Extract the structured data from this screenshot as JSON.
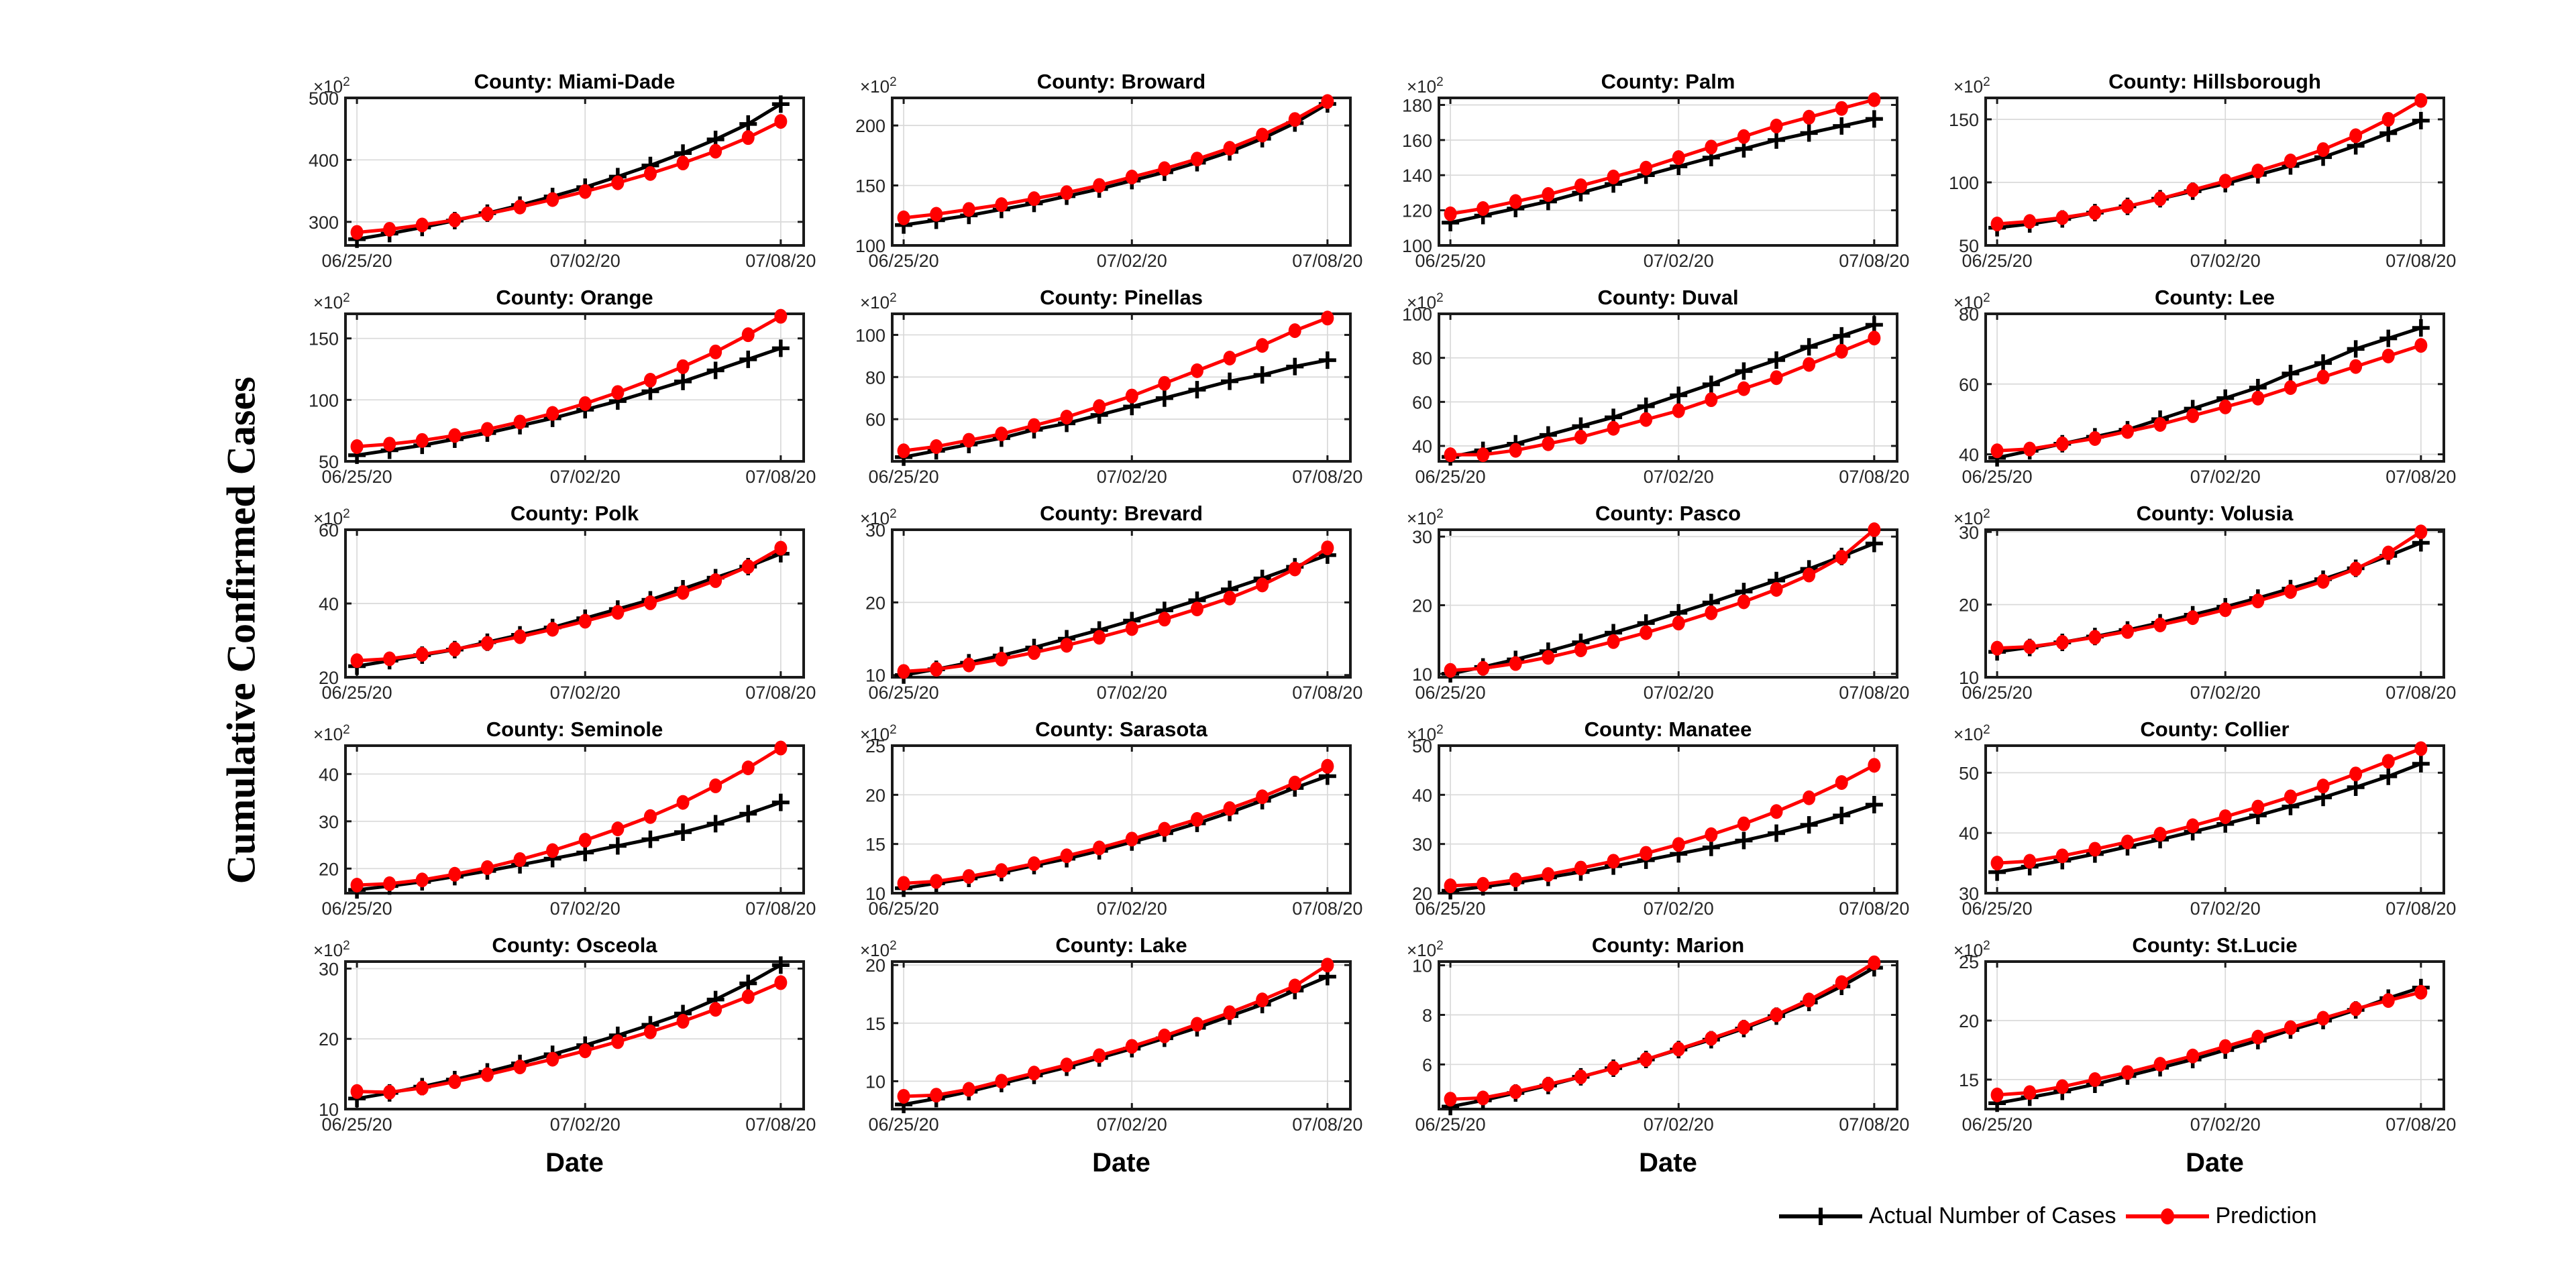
{
  "figure": {
    "ylabel": "Cumulative Confirmed Cases",
    "xlabel": "Date",
    "y_mult_base": "×10",
    "y_mult_exp": "2",
    "background": "#ffffff"
  },
  "legend": {
    "actual_label": "Actual Number of Cases",
    "prediction_label": "Prediction"
  },
  "colors": {
    "actual": "#000000",
    "prediction": "#ff0000",
    "grid_line": "#d9d9d9",
    "axis_box": "#1a1a1a",
    "tick_label": "#262626"
  },
  "x_axis": {
    "n_points": 14,
    "dates": [
      "06/25/20",
      "06/26/20",
      "06/27/20",
      "06/28/20",
      "06/29/20",
      "06/30/20",
      "07/01/20",
      "07/02/20",
      "07/03/20",
      "07/04/20",
      "07/05/20",
      "07/06/20",
      "07/07/20",
      "07/08/20"
    ],
    "tick_labels": [
      "06/25/20",
      "07/02/20",
      "07/08/20"
    ],
    "tick_positions": [
      0,
      7,
      13
    ]
  },
  "chart_data": [
    {
      "type": "line",
      "county": "Miami-Dade",
      "slug": "miami-dade",
      "title": "County: Miami-Dade",
      "unit": "x10^2",
      "ylim": [
        262,
        500
      ],
      "yticks": [
        300,
        400,
        500
      ],
      "series": [
        {
          "name": "Actual Number of Cases",
          "values": [
            272,
            281,
            291,
            302,
            314,
            327,
            341,
            356,
            373,
            391,
            411,
            433,
            458,
            490
          ]
        },
        {
          "name": "Prediction",
          "values": [
            283,
            288,
            295,
            303,
            313,
            324,
            336,
            349,
            363,
            378,
            395,
            414,
            436,
            462
          ]
        }
      ]
    },
    {
      "type": "line",
      "county": "Broward",
      "slug": "broward",
      "title": "County: Broward",
      "unit": "x10^2",
      "ylim": [
        100,
        223
      ],
      "yticks": [
        100,
        150,
        200
      ],
      "series": [
        {
          "name": "Actual Number of Cases",
          "values": [
            117,
            121,
            125,
            130,
            135,
            141,
            147,
            154,
            161,
            169,
            178,
            189,
            202,
            218
          ]
        },
        {
          "name": "Prediction",
          "values": [
            123,
            126,
            130,
            134,
            139,
            144,
            150,
            157,
            164,
            172,
            181,
            192,
            205,
            220
          ]
        }
      ]
    },
    {
      "type": "line",
      "county": "Palm",
      "slug": "palm",
      "title": "County: Palm",
      "unit": "x10^2",
      "ylim": [
        100,
        184
      ],
      "yticks": [
        100,
        120,
        140,
        160,
        180
      ],
      "series": [
        {
          "name": "Actual Number of Cases",
          "values": [
            113,
            117,
            121,
            125,
            130,
            135,
            140,
            145,
            150,
            155,
            160,
            164,
            168,
            172
          ]
        },
        {
          "name": "Prediction",
          "values": [
            118,
            121,
            125,
            129,
            134,
            139,
            144,
            150,
            156,
            162,
            168,
            173,
            178,
            183
          ]
        }
      ]
    },
    {
      "type": "line",
      "county": "Hillsborough",
      "slug": "hillsborough",
      "title": "County: Hillsborough",
      "unit": "x10^2",
      "ylim": [
        50,
        167
      ],
      "yticks": [
        50,
        100,
        150
      ],
      "series": [
        {
          "name": "Actual Number of Cases",
          "values": [
            64,
            67,
            71,
            76,
            81,
            87,
            93,
            99,
            106,
            113,
            120,
            129,
            139,
            149
          ]
        },
        {
          "name": "Prediction",
          "values": [
            67,
            69,
            72,
            76,
            81,
            87,
            94,
            101,
            109,
            117,
            126,
            137,
            150,
            165
          ]
        }
      ]
    },
    {
      "type": "line",
      "county": "Orange",
      "slug": "orange",
      "title": "County: Orange",
      "unit": "x10^2",
      "ylim": [
        50,
        170
      ],
      "yticks": [
        50,
        100,
        150
      ],
      "series": [
        {
          "name": "Actual Number of Cases",
          "values": [
            55,
            59,
            63,
            68,
            73,
            79,
            85,
            92,
            99,
            107,
            115,
            124,
            133,
            142
          ]
        },
        {
          "name": "Prediction",
          "values": [
            62,
            64,
            67,
            71,
            76,
            82,
            89,
            97,
            106,
            116,
            127,
            139,
            153,
            168
          ]
        }
      ]
    },
    {
      "type": "line",
      "county": "Pinellas",
      "slug": "pinellas",
      "title": "County: Pinellas",
      "unit": "x10^2",
      "ylim": [
        40,
        110
      ],
      "yticks": [
        60,
        80,
        100
      ],
      "series": [
        {
          "name": "Actual Number of Cases",
          "values": [
            42,
            45,
            48,
            51,
            55,
            58,
            62,
            66,
            70,
            74,
            78,
            81,
            85,
            88
          ]
        },
        {
          "name": "Prediction",
          "values": [
            45,
            47,
            50,
            53,
            57,
            61,
            66,
            71,
            77,
            83,
            89,
            95,
            102,
            108
          ]
        }
      ]
    },
    {
      "type": "line",
      "county": "Duval",
      "slug": "duval",
      "title": "County: Duval",
      "unit": "x10^2",
      "ylim": [
        33,
        100
      ],
      "yticks": [
        40,
        60,
        80,
        100
      ],
      "series": [
        {
          "name": "Actual Number of Cases",
          "values": [
            35,
            38,
            41,
            45,
            49,
            53,
            58,
            63,
            68,
            74,
            79,
            85,
            90,
            95
          ]
        },
        {
          "name": "Prediction",
          "values": [
            36,
            36,
            38,
            41,
            44,
            48,
            52,
            56,
            61,
            66,
            71,
            77,
            83,
            89
          ]
        }
      ]
    },
    {
      "type": "line",
      "county": "Lee",
      "slug": "lee",
      "title": "County: Lee",
      "unit": "x10^2",
      "ylim": [
        38,
        80
      ],
      "yticks": [
        40,
        60,
        80
      ],
      "series": [
        {
          "name": "Actual Number of Cases",
          "values": [
            39,
            41,
            43,
            45,
            47,
            50,
            53,
            56,
            59,
            63,
            66,
            70,
            73,
            76
          ]
        },
        {
          "name": "Prediction",
          "values": [
            41,
            41.5,
            43,
            44.5,
            46.5,
            48.5,
            51,
            53.5,
            56,
            59,
            62,
            65,
            68,
            71
          ]
        }
      ]
    },
    {
      "type": "line",
      "county": "Polk",
      "slug": "polk",
      "title": "County: Polk",
      "unit": "x10^2",
      "ylim": [
        20,
        60
      ],
      "yticks": [
        20,
        40,
        60
      ],
      "series": [
        {
          "name": "Actual Number of Cases",
          "values": [
            23,
            24.5,
            26,
            27.5,
            29.5,
            31.5,
            33.5,
            36,
            38.5,
            41,
            44,
            47,
            50,
            53.5
          ]
        },
        {
          "name": "Prediction",
          "values": [
            24.5,
            25,
            26.2,
            27.6,
            29.2,
            31,
            33,
            35.2,
            37.6,
            40.2,
            43,
            46.2,
            50,
            55
          ]
        }
      ]
    },
    {
      "type": "line",
      "county": "Brevard",
      "slug": "brevard",
      "title": "County: Brevard",
      "unit": "x10^2",
      "ylim": [
        9.7,
        30
      ],
      "yticks": [
        10,
        20,
        30
      ],
      "series": [
        {
          "name": "Actual Number of Cases",
          "values": [
            10,
            10.8,
            11.7,
            12.7,
            13.8,
            15,
            16.2,
            17.5,
            18.9,
            20.3,
            21.8,
            23.3,
            24.9,
            26.5
          ]
        },
        {
          "name": "Prediction",
          "values": [
            10.5,
            10.8,
            11.4,
            12.2,
            13.1,
            14.1,
            15.2,
            16.4,
            17.7,
            19.1,
            20.6,
            22.4,
            24.6,
            27.5
          ]
        }
      ]
    },
    {
      "type": "line",
      "county": "Pasco",
      "slug": "pasco",
      "title": "County: Pasco",
      "unit": "x10^2",
      "ylim": [
        9.5,
        31
      ],
      "yticks": [
        10,
        20,
        30
      ],
      "series": [
        {
          "name": "Actual Number of Cases",
          "values": [
            10,
            11,
            12.1,
            13.3,
            14.6,
            16,
            17.4,
            18.9,
            20.4,
            22,
            23.6,
            25.3,
            27.1,
            29
          ]
        },
        {
          "name": "Prediction",
          "values": [
            10.5,
            10.8,
            11.5,
            12.4,
            13.5,
            14.7,
            16,
            17.4,
            18.9,
            20.5,
            22.3,
            24.4,
            27,
            31
          ]
        }
      ]
    },
    {
      "type": "line",
      "county": "Volusia",
      "slug": "volusia",
      "title": "County: Volusia",
      "unit": "x10^2",
      "ylim": [
        10,
        30.3
      ],
      "yticks": [
        10,
        20,
        30
      ],
      "series": [
        {
          "name": "Actual Number of Cases",
          "values": [
            13.5,
            14.1,
            14.8,
            15.6,
            16.5,
            17.5,
            18.6,
            19.7,
            20.9,
            22.2,
            23.5,
            25,
            26.7,
            28.5
          ]
        },
        {
          "name": "Prediction",
          "values": [
            14,
            14.2,
            14.8,
            15.5,
            16.3,
            17.2,
            18.2,
            19.3,
            20.5,
            21.8,
            23.2,
            24.9,
            27.1,
            30
          ]
        }
      ]
    },
    {
      "type": "line",
      "county": "Seminole",
      "slug": "seminole",
      "title": "County: Seminole",
      "unit": "x10^2",
      "ylim": [
        14.8,
        46
      ],
      "yticks": [
        20,
        30,
        40
      ],
      "series": [
        {
          "name": "Actual Number of Cases",
          "values": [
            15.5,
            16.3,
            17.2,
            18.3,
            19.5,
            20.8,
            22.1,
            23.4,
            24.8,
            26.2,
            27.7,
            29.5,
            31.6,
            34
          ]
        },
        {
          "name": "Prediction",
          "values": [
            16.5,
            16.8,
            17.6,
            18.8,
            20.2,
            21.9,
            23.8,
            26,
            28.4,
            31,
            34,
            37.5,
            41.3,
            45.5
          ]
        }
      ]
    },
    {
      "type": "line",
      "county": "Sarasota",
      "slug": "sarasota",
      "title": "County: Sarasota",
      "unit": "x10^2",
      "ylim": [
        10,
        25
      ],
      "yticks": [
        10,
        15,
        20,
        25
      ],
      "series": [
        {
          "name": "Actual Number of Cases",
          "values": [
            10.5,
            11,
            11.5,
            12.1,
            12.8,
            13.5,
            14.3,
            15.2,
            16.1,
            17.1,
            18.2,
            19.4,
            20.7,
            21.9
          ]
        },
        {
          "name": "Prediction",
          "values": [
            11,
            11.2,
            11.7,
            12.3,
            13,
            13.8,
            14.6,
            15.5,
            16.5,
            17.5,
            18.6,
            19.8,
            21.2,
            22.9
          ]
        }
      ]
    },
    {
      "type": "line",
      "county": "Manatee",
      "slug": "manatee",
      "title": "County: Manatee",
      "unit": "x10^2",
      "ylim": [
        20,
        50
      ],
      "yticks": [
        20,
        30,
        40,
        50
      ],
      "series": [
        {
          "name": "Actual Number of Cases",
          "values": [
            20.5,
            21.3,
            22.2,
            23.2,
            24.3,
            25.5,
            26.7,
            28,
            29.3,
            30.7,
            32.2,
            33.9,
            35.8,
            38
          ]
        },
        {
          "name": "Prediction",
          "values": [
            21.5,
            21.8,
            22.7,
            23.8,
            25.1,
            26.5,
            28.1,
            29.9,
            31.9,
            34.1,
            36.6,
            39.4,
            42.5,
            46
          ]
        }
      ]
    },
    {
      "type": "line",
      "county": "Collier",
      "slug": "collier",
      "title": "County: Collier",
      "unit": "x10^2",
      "ylim": [
        30,
        54.5
      ],
      "yticks": [
        30,
        40,
        50
      ],
      "series": [
        {
          "name": "Actual Number of Cases",
          "values": [
            33.5,
            34.4,
            35.4,
            36.5,
            37.7,
            38.9,
            40.2,
            41.5,
            42.9,
            44.4,
            45.9,
            47.6,
            49.4,
            51.5
          ]
        },
        {
          "name": "Prediction",
          "values": [
            35,
            35.3,
            36.2,
            37.3,
            38.5,
            39.8,
            41.2,
            42.7,
            44.3,
            46,
            47.8,
            49.8,
            51.9,
            54
          ]
        }
      ]
    },
    {
      "type": "line",
      "county": "Osceola",
      "slug": "osceola",
      "title": "County: Osceola",
      "unit": "x10^2",
      "ylim": [
        10,
        31
      ],
      "yticks": [
        10,
        20,
        30
      ],
      "series": [
        {
          "name": "Actual Number of Cases",
          "values": [
            11.5,
            12.3,
            13.2,
            14.2,
            15.3,
            16.5,
            17.8,
            19.1,
            20.5,
            22,
            23.6,
            25.6,
            27.9,
            30.5
          ]
        },
        {
          "name": "Prediction",
          "values": [
            12.5,
            12.4,
            13,
            13.9,
            14.9,
            16,
            17.1,
            18.3,
            19.6,
            21,
            22.5,
            24.2,
            26,
            28
          ]
        }
      ]
    },
    {
      "type": "line",
      "county": "Lake",
      "slug": "lake",
      "title": "County: Lake",
      "unit": "x10^2",
      "ylim": [
        7.6,
        20.3
      ],
      "yticks": [
        10,
        15,
        20
      ],
      "series": [
        {
          "name": "Actual Number of Cases",
          "values": [
            8,
            8.5,
            9.1,
            9.8,
            10.5,
            11.2,
            12,
            12.8,
            13.7,
            14.6,
            15.6,
            16.6,
            17.8,
            19
          ]
        },
        {
          "name": "Prediction",
          "values": [
            8.7,
            8.8,
            9.3,
            10,
            10.7,
            11.4,
            12.2,
            13,
            13.9,
            14.9,
            15.9,
            17,
            18.2,
            20
          ]
        }
      ]
    },
    {
      "type": "line",
      "county": "Marion",
      "slug": "marion",
      "title": "County: Marion",
      "unit": "x10^2",
      "ylim": [
        4.2,
        10.15
      ],
      "yticks": [
        6,
        8,
        10
      ],
      "series": [
        {
          "name": "Actual Number of Cases",
          "values": [
            4.3,
            4.55,
            4.85,
            5.15,
            5.5,
            5.85,
            6.2,
            6.6,
            7,
            7.45,
            7.95,
            8.5,
            9.15,
            9.9
          ]
        },
        {
          "name": "Prediction",
          "values": [
            4.6,
            4.65,
            4.9,
            5.2,
            5.5,
            5.85,
            6.2,
            6.62,
            7.05,
            7.5,
            8,
            8.6,
            9.3,
            10.1
          ]
        }
      ]
    },
    {
      "type": "line",
      "county": "St.Lucie",
      "slug": "st-lucie",
      "title": "County: St.Lucie",
      "unit": "x10^2",
      "ylim": [
        12.5,
        25
      ],
      "yticks": [
        15,
        20,
        25
      ],
      "series": [
        {
          "name": "Actual Number of Cases",
          "values": [
            13,
            13.5,
            14,
            14.6,
            15.3,
            16,
            16.7,
            17.5,
            18.3,
            19.2,
            20,
            20.9,
            21.9,
            22.8
          ]
        },
        {
          "name": "Prediction",
          "values": [
            13.7,
            13.9,
            14.4,
            15,
            15.6,
            16.3,
            17,
            17.8,
            18.6,
            19.4,
            20.2,
            21,
            21.7,
            22.4
          ]
        }
      ]
    }
  ]
}
